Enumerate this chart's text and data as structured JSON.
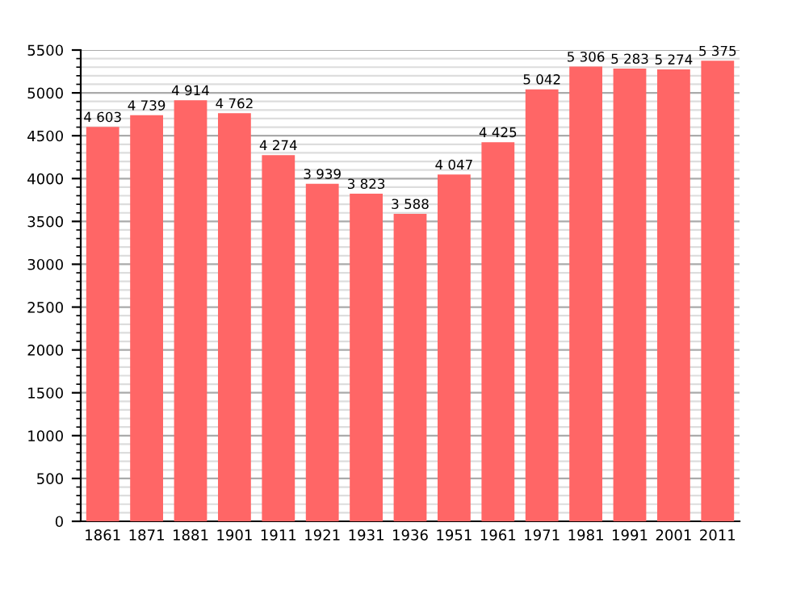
{
  "chart_data": {
    "type": "bar",
    "categories": [
      "1861",
      "1871",
      "1881",
      "1901",
      "1911",
      "1921",
      "1931",
      "1936",
      "1951",
      "1961",
      "1971",
      "1981",
      "1991",
      "2001",
      "2011"
    ],
    "values": [
      4603,
      4739,
      4914,
      4762,
      4274,
      3939,
      3823,
      3588,
      4047,
      4425,
      5042,
      5306,
      5283,
      5274,
      5375
    ],
    "value_labels": [
      "4 603",
      "4 739",
      "4 914",
      "4 762",
      "4 274",
      "3 939",
      "3 823",
      "3 588",
      "4 047",
      "4 425",
      "5 042",
      "5 306",
      "5 283",
      "5 274",
      "5 375"
    ],
    "color": "#ff6666",
    "ylim": [
      0,
      5500
    ],
    "yticks": [
      0,
      500,
      1000,
      1500,
      2000,
      2500,
      3000,
      3500,
      4000,
      4500,
      5000,
      5500
    ],
    "grid": "y"
  }
}
